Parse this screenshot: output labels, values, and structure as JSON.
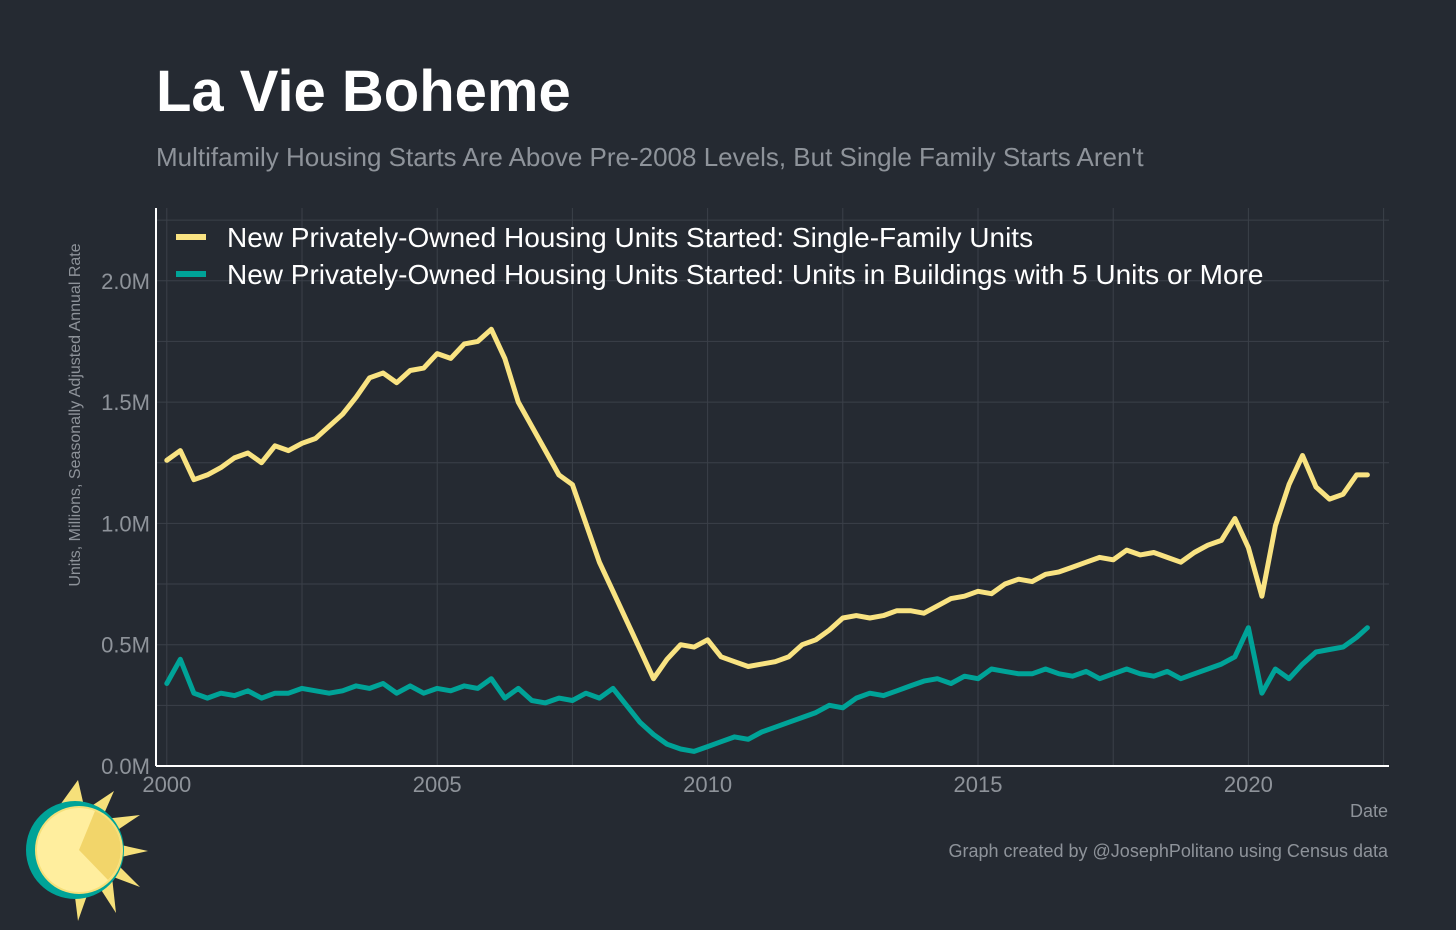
{
  "header": {
    "title": "La Vie Boheme",
    "subtitle": "Multifamily Housing Starts Are Above Pre-2008 Levels, But Single Family Starts Aren't"
  },
  "footer": {
    "caption": "Graph created by @JosephPolitano using Census data"
  },
  "logo": {
    "icon": "sun-icon"
  },
  "colors": {
    "background": "#252a32",
    "grid": "#3b4049",
    "axis": "#ffffff",
    "tick_text": "#8e939a",
    "single_family": "#f9e382",
    "multifamily": "#00a398"
  },
  "chart_data": {
    "type": "line",
    "xlabel": "Date",
    "ylabel": "Units, Millions, Seasonally Adjusted Annual Rate",
    "xlim": [
      1999.8,
      2022.6
    ],
    "ylim": [
      0,
      2.3
    ],
    "x_ticks": [
      2000,
      2005,
      2010,
      2015,
      2020
    ],
    "x_tick_labels": [
      "2000",
      "2005",
      "2010",
      "2015",
      "2020"
    ],
    "y_ticks": [
      0,
      0.5,
      1.0,
      1.5,
      2.0
    ],
    "y_tick_labels": [
      "0.0M",
      "0.5M",
      "1.0M",
      "1.5M",
      "2.0M"
    ],
    "grid": true,
    "legend_position": "top-left",
    "series": [
      {
        "name": "New Privately-Owned Housing Units Started: Single-Family Units",
        "color": "#f9e382",
        "x": [
          2000,
          2000.25,
          2000.5,
          2000.75,
          2001,
          2001.25,
          2001.5,
          2001.75,
          2002,
          2002.25,
          2002.5,
          2002.75,
          2003,
          2003.25,
          2003.5,
          2003.75,
          2004,
          2004.25,
          2004.5,
          2004.75,
          2005,
          2005.25,
          2005.5,
          2005.75,
          2006,
          2006.25,
          2006.5,
          2006.75,
          2007,
          2007.25,
          2007.5,
          2007.75,
          2008,
          2008.25,
          2008.5,
          2008.75,
          2009,
          2009.25,
          2009.5,
          2009.75,
          2010,
          2010.25,
          2010.5,
          2010.75,
          2011,
          2011.25,
          2011.5,
          2011.75,
          2012,
          2012.25,
          2012.5,
          2012.75,
          2013,
          2013.25,
          2013.5,
          2013.75,
          2014,
          2014.25,
          2014.5,
          2014.75,
          2015,
          2015.25,
          2015.5,
          2015.75,
          2016,
          2016.25,
          2016.5,
          2016.75,
          2017,
          2017.25,
          2017.5,
          2017.75,
          2018,
          2018.25,
          2018.5,
          2018.75,
          2019,
          2019.25,
          2019.5,
          2019.75,
          2020,
          2020.25,
          2020.5,
          2020.75,
          2021,
          2021.25,
          2021.5,
          2021.75,
          2022,
          2022.2
        ],
        "values": [
          1.26,
          1.3,
          1.18,
          1.2,
          1.23,
          1.27,
          1.29,
          1.25,
          1.32,
          1.3,
          1.33,
          1.35,
          1.4,
          1.45,
          1.52,
          1.6,
          1.62,
          1.58,
          1.63,
          1.64,
          1.7,
          1.68,
          1.74,
          1.75,
          1.8,
          1.68,
          1.5,
          1.4,
          1.3,
          1.2,
          1.16,
          1.0,
          0.84,
          0.72,
          0.6,
          0.48,
          0.36,
          0.44,
          0.5,
          0.49,
          0.52,
          0.45,
          0.43,
          0.41,
          0.42,
          0.43,
          0.45,
          0.5,
          0.52,
          0.56,
          0.61,
          0.62,
          0.61,
          0.62,
          0.64,
          0.64,
          0.63,
          0.66,
          0.69,
          0.7,
          0.72,
          0.71,
          0.75,
          0.77,
          0.76,
          0.79,
          0.8,
          0.82,
          0.84,
          0.86,
          0.85,
          0.89,
          0.87,
          0.88,
          0.86,
          0.84,
          0.88,
          0.91,
          0.93,
          1.02,
          0.9,
          0.7,
          0.99,
          1.16,
          1.28,
          1.15,
          1.1,
          1.12,
          1.2,
          1.2
        ]
      },
      {
        "name": "New Privately-Owned Housing Units Started: Units in Buildings with 5 Units or More",
        "color": "#00a398",
        "x": [
          2000,
          2000.25,
          2000.5,
          2000.75,
          2001,
          2001.25,
          2001.5,
          2001.75,
          2002,
          2002.25,
          2002.5,
          2002.75,
          2003,
          2003.25,
          2003.5,
          2003.75,
          2004,
          2004.25,
          2004.5,
          2004.75,
          2005,
          2005.25,
          2005.5,
          2005.75,
          2006,
          2006.25,
          2006.5,
          2006.75,
          2007,
          2007.25,
          2007.5,
          2007.75,
          2008,
          2008.25,
          2008.5,
          2008.75,
          2009,
          2009.25,
          2009.5,
          2009.75,
          2010,
          2010.25,
          2010.5,
          2010.75,
          2011,
          2011.25,
          2011.5,
          2011.75,
          2012,
          2012.25,
          2012.5,
          2012.75,
          2013,
          2013.25,
          2013.5,
          2013.75,
          2014,
          2014.25,
          2014.5,
          2014.75,
          2015,
          2015.25,
          2015.5,
          2015.75,
          2016,
          2016.25,
          2016.5,
          2016.75,
          2017,
          2017.25,
          2017.5,
          2017.75,
          2018,
          2018.25,
          2018.5,
          2018.75,
          2019,
          2019.25,
          2019.5,
          2019.75,
          2020,
          2020.25,
          2020.5,
          2020.75,
          2021,
          2021.25,
          2021.5,
          2021.75,
          2022,
          2022.2
        ],
        "values": [
          0.34,
          0.44,
          0.3,
          0.28,
          0.3,
          0.29,
          0.31,
          0.28,
          0.3,
          0.3,
          0.32,
          0.31,
          0.3,
          0.31,
          0.33,
          0.32,
          0.34,
          0.3,
          0.33,
          0.3,
          0.32,
          0.31,
          0.33,
          0.32,
          0.36,
          0.28,
          0.32,
          0.27,
          0.26,
          0.28,
          0.27,
          0.3,
          0.28,
          0.32,
          0.25,
          0.18,
          0.13,
          0.09,
          0.07,
          0.06,
          0.08,
          0.1,
          0.12,
          0.11,
          0.14,
          0.16,
          0.18,
          0.2,
          0.22,
          0.25,
          0.24,
          0.28,
          0.3,
          0.29,
          0.31,
          0.33,
          0.35,
          0.36,
          0.34,
          0.37,
          0.36,
          0.4,
          0.39,
          0.38,
          0.38,
          0.4,
          0.38,
          0.37,
          0.39,
          0.36,
          0.38,
          0.4,
          0.38,
          0.37,
          0.39,
          0.36,
          0.38,
          0.4,
          0.42,
          0.45,
          0.57,
          0.3,
          0.4,
          0.36,
          0.42,
          0.47,
          0.48,
          0.49,
          0.53,
          0.57
        ]
      }
    ]
  }
}
